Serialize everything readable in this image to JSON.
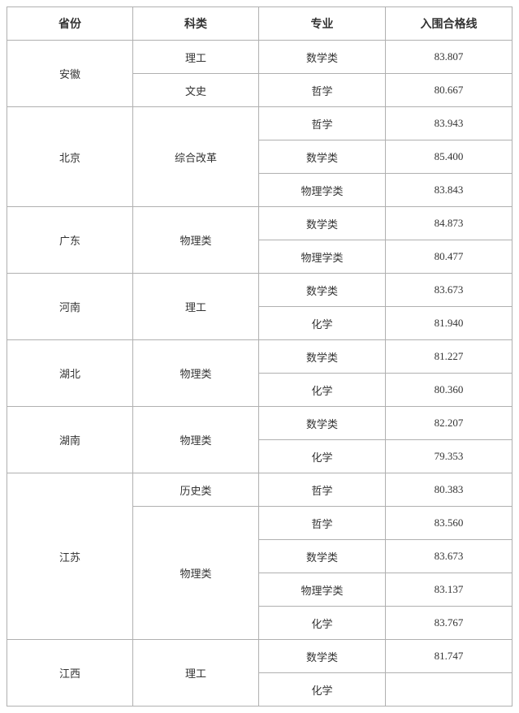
{
  "headers": [
    "省份",
    "科类",
    "专业",
    "入围合格线"
  ],
  "rows": [
    {
      "province": "安徽",
      "category": "理工",
      "major": "数学类",
      "score": "83.807",
      "pspan": 2,
      "cspan": 1
    },
    {
      "province": "",
      "category": "文史",
      "major": "哲学",
      "score": "80.667",
      "pspan": 0,
      "cspan": 1
    },
    {
      "province": "北京",
      "category": "综合改革",
      "major": "哲学",
      "score": "83.943",
      "pspan": 3,
      "cspan": 3
    },
    {
      "province": "",
      "category": "",
      "major": "数学类",
      "score": "85.400",
      "pspan": 0,
      "cspan": 0
    },
    {
      "province": "",
      "category": "",
      "major": "物理学类",
      "score": "83.843",
      "pspan": 0,
      "cspan": 0
    },
    {
      "province": "广东",
      "category": "物理类",
      "major": "数学类",
      "score": "84.873",
      "pspan": 2,
      "cspan": 2
    },
    {
      "province": "",
      "category": "",
      "major": "物理学类",
      "score": "80.477",
      "pspan": 0,
      "cspan": 0
    },
    {
      "province": "河南",
      "category": "理工",
      "major": "数学类",
      "score": "83.673",
      "pspan": 2,
      "cspan": 2
    },
    {
      "province": "",
      "category": "",
      "major": "化学",
      "score": "81.940",
      "pspan": 0,
      "cspan": 0
    },
    {
      "province": "湖北",
      "category": "物理类",
      "major": "数学类",
      "score": "81.227",
      "pspan": 2,
      "cspan": 2
    },
    {
      "province": "",
      "category": "",
      "major": "化学",
      "score": "80.360",
      "pspan": 0,
      "cspan": 0
    },
    {
      "province": "湖南",
      "category": "物理类",
      "major": "数学类",
      "score": "82.207",
      "pspan": 2,
      "cspan": 2
    },
    {
      "province": "",
      "category": "",
      "major": "化学",
      "score": "79.353",
      "pspan": 0,
      "cspan": 0
    },
    {
      "province": "江苏",
      "category": "历史类",
      "major": "哲学",
      "score": "80.383",
      "pspan": 5,
      "cspan": 1
    },
    {
      "province": "",
      "category": "物理类",
      "major": "哲学",
      "score": "83.560",
      "pspan": 0,
      "cspan": 4
    },
    {
      "province": "",
      "category": "",
      "major": "数学类",
      "score": "83.673",
      "pspan": 0,
      "cspan": 0
    },
    {
      "province": "",
      "category": "",
      "major": "物理学类",
      "score": "83.137",
      "pspan": 0,
      "cspan": 0
    },
    {
      "province": "",
      "category": "",
      "major": "化学",
      "score": "83.767",
      "pspan": 0,
      "cspan": 0
    },
    {
      "province": "江西",
      "category": "理工",
      "major": "数学类",
      "score": "81.747",
      "pspan": 2,
      "cspan": 2
    },
    {
      "province": "",
      "category": "",
      "major": "化学",
      "score": "",
      "pspan": 0,
      "cspan": 0
    }
  ]
}
